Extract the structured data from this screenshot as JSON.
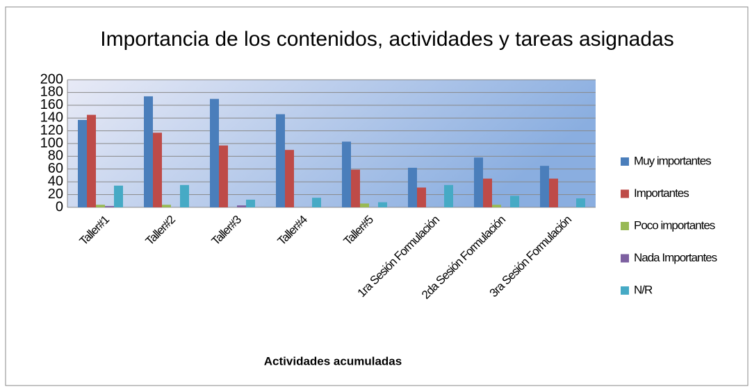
{
  "chart_data": {
    "type": "bar",
    "title": "Importancia de los contenidos, actividades y tareas asignadas",
    "x_label": "Actividades acumuladas",
    "categories": [
      "Taller#1",
      "Taller#2",
      "Taller#3",
      "Taller#4",
      "Taller#5",
      "1ra Sesión Formulación",
      "2da Sesión Formulación",
      "3ra Sesión Formulación"
    ],
    "series": [
      {
        "name": "Muy importantes",
        "color": "#4a7ebb",
        "values": [
          137,
          174,
          170,
          146,
          103,
          62,
          78,
          65
        ]
      },
      {
        "name": "Importantes",
        "color": "#be4b48",
        "values": [
          145,
          117,
          97,
          90,
          59,
          31,
          45,
          45
        ]
      },
      {
        "name": "Poco importantes",
        "color": "#98b954",
        "values": [
          4,
          4,
          0,
          0,
          6,
          0,
          4,
          0
        ]
      },
      {
        "name": "Nada Importantes",
        "color": "#7d60a0",
        "values": [
          2,
          0,
          3,
          0,
          0,
          0,
          0,
          0
        ]
      },
      {
        "name": "N/R",
        "color": "#46aac5",
        "values": [
          34,
          35,
          12,
          15,
          8,
          35,
          18,
          14
        ]
      }
    ],
    "ylim": [
      0,
      200
    ],
    "yticks": [
      0,
      20,
      40,
      60,
      80,
      100,
      120,
      140,
      160,
      180,
      200
    ],
    "grid": true,
    "legend": "right"
  }
}
